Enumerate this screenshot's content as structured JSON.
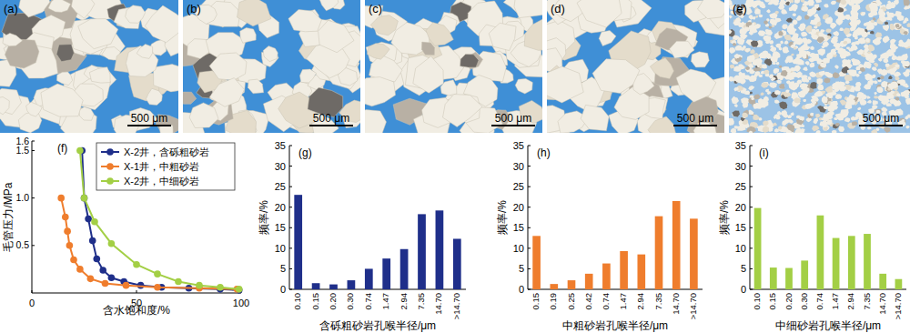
{
  "images": [
    {
      "label": "(a)",
      "scale_bar": "500 μm"
    },
    {
      "label": "(b)",
      "scale_bar": "500 μm"
    },
    {
      "label": "(c)",
      "scale_bar": "500 μm"
    },
    {
      "label": "(d)",
      "scale_bar": "500 μm"
    },
    {
      "label": "(e)",
      "scale_bar": "500 μm"
    }
  ],
  "chart_data": [
    {
      "type": "line",
      "title": "(f)",
      "x_label": "含水饱和度/%",
      "y_label": "毛管压力/MPa",
      "xlim": [
        0,
        100
      ],
      "xticks": [
        0,
        50,
        100
      ],
      "ylim": [
        0,
        1.6
      ],
      "yticks": [
        {
          "value": 0.5,
          "label": "0.5"
        },
        {
          "value": 1,
          "label": "1.0"
        },
        1.5,
        1.6
      ],
      "legend": "upper right",
      "grid": false,
      "series": [
        {
          "name": "X-2井，含砾粗砂岩",
          "color": "#1f2f8a",
          "marker": "circle",
          "x": [
            24,
            25,
            27,
            29,
            31,
            34,
            38,
            44,
            52,
            62,
            75,
            90,
            99
          ],
          "values": [
            1.5,
            1.0,
            0.78,
            0.55,
            0.36,
            0.24,
            0.16,
            0.12,
            0.08,
            0.06,
            0.05,
            0.04,
            0.03
          ]
        },
        {
          "name": "X-1井，中粗砂岩",
          "color": "#ef7d2d",
          "marker": "circle",
          "x": [
            14,
            16,
            17,
            18,
            20,
            23,
            28,
            35,
            45,
            60,
            80,
            98
          ],
          "values": [
            1.0,
            0.8,
            0.65,
            0.5,
            0.35,
            0.25,
            0.15,
            0.1,
            0.08,
            0.06,
            0.05,
            0.04
          ]
        },
        {
          "name": "X-2井，中细砂岩",
          "color": "#a3cf45",
          "marker": "circle",
          "x": [
            23,
            25,
            30,
            38,
            50,
            60,
            70,
            80,
            90,
            99
          ],
          "values": [
            1.5,
            1.0,
            0.75,
            0.52,
            0.3,
            0.2,
            0.12,
            0.08,
            0.06,
            0.04
          ]
        }
      ]
    },
    {
      "type": "bar",
      "title": "(g)",
      "x_label": "含砾粗砂岩孔喉半径/μm",
      "y_label": "频率/%",
      "categories": [
        "0.10",
        "0.15",
        "0.20",
        "0.30",
        "0.74",
        "1.47",
        "2.94",
        "7.35",
        "14.70",
        ">14.70"
      ],
      "values": [
        23,
        1.5,
        1.2,
        2.2,
        5,
        7.5,
        9.8,
        18.3,
        19.2,
        12.3
      ],
      "color": "#1f2f8a",
      "ylim": [
        0,
        35
      ],
      "yticks": [
        0,
        5,
        10,
        15,
        20,
        25,
        30,
        35
      ],
      "grid": false
    },
    {
      "type": "bar",
      "title": "(h)",
      "x_label": "中粗砂岩孔喉半径/μm",
      "y_label": "频率/%",
      "categories": [
        "0.15",
        "0.19",
        "0.25",
        "0.42",
        "0.74",
        "1.47",
        "2.94",
        "7.35",
        "14.70",
        ">14.70"
      ],
      "values": [
        13,
        1.3,
        2.2,
        3.8,
        6.3,
        9.3,
        8.5,
        17.8,
        21.5,
        17.2
      ],
      "color": "#ef7d2d",
      "ylim": [
        0,
        35
      ],
      "yticks": [
        0,
        5,
        10,
        15,
        20,
        25,
        30,
        35
      ],
      "grid": false
    },
    {
      "type": "bar",
      "title": "(i)",
      "x_label": "中细砂岩孔喉半径/μm",
      "y_label": "频率/%",
      "categories": [
        "0.10",
        "0.15",
        "0.20",
        "0.30",
        "0.74",
        "1.47",
        "2.94",
        "7.35",
        "14.70",
        ">14.70"
      ],
      "values": [
        19.8,
        5.3,
        5.2,
        7,
        18,
        12.5,
        13,
        13.5,
        3.8,
        2.5
      ],
      "color": "#a3cf45",
      "ylim": [
        0,
        35
      ],
      "yticks": [
        0,
        5,
        10,
        15,
        20,
        25,
        30,
        35
      ],
      "grid": false
    }
  ]
}
